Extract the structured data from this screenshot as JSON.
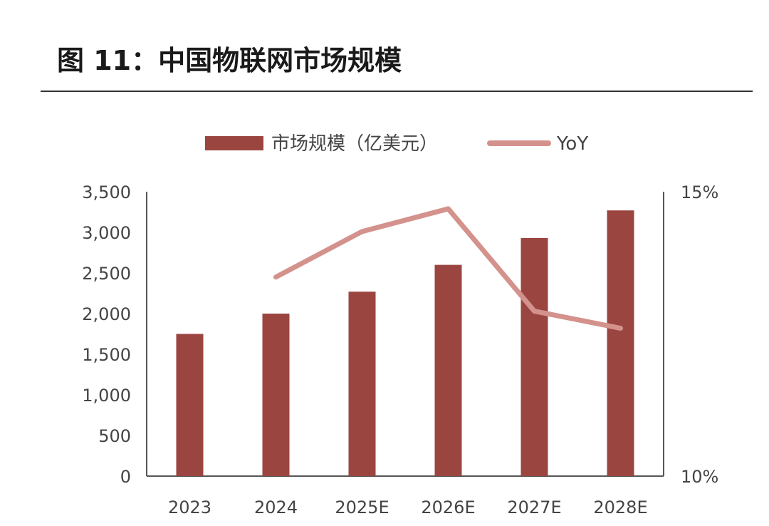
{
  "figure": {
    "title": "图 11：中国物联网市场规模"
  },
  "chart_data": {
    "type": "bar",
    "categories": [
      "2023",
      "2024",
      "2025E",
      "2026E",
      "2027E",
      "2028E"
    ],
    "series": [
      {
        "name": "市场规模（亿美元）",
        "type": "bar",
        "axis": "left",
        "values": [
          1750,
          2000,
          2270,
          2600,
          2930,
          3270
        ]
      },
      {
        "name": "YoY",
        "type": "line",
        "axis": "right",
        "values": [
          null,
          13.5,
          14.3,
          14.7,
          12.9,
          12.6
        ]
      }
    ],
    "y_left": {
      "lim": [
        0,
        3500
      ],
      "ticks": [
        0,
        500,
        1000,
        1500,
        2000,
        2500,
        3000,
        3500
      ],
      "tick_labels": [
        "0",
        "500",
        "1,000",
        "1,500",
        "2,000",
        "2,500",
        "3,000",
        "3,500"
      ]
    },
    "y_right": {
      "lim": [
        10,
        15
      ],
      "ticks": [
        10,
        15
      ],
      "tick_labels": [
        "10%",
        "15%"
      ]
    },
    "legend": {
      "position": "top",
      "items": [
        {
          "label": "市场规模（亿美元）",
          "kind": "bar"
        },
        {
          "label": "YoY",
          "kind": "line"
        }
      ]
    },
    "grid": false,
    "colors": {
      "bar": "#9b4540",
      "line": "#d4928d",
      "axis": "#555555",
      "text": "#444444"
    }
  }
}
